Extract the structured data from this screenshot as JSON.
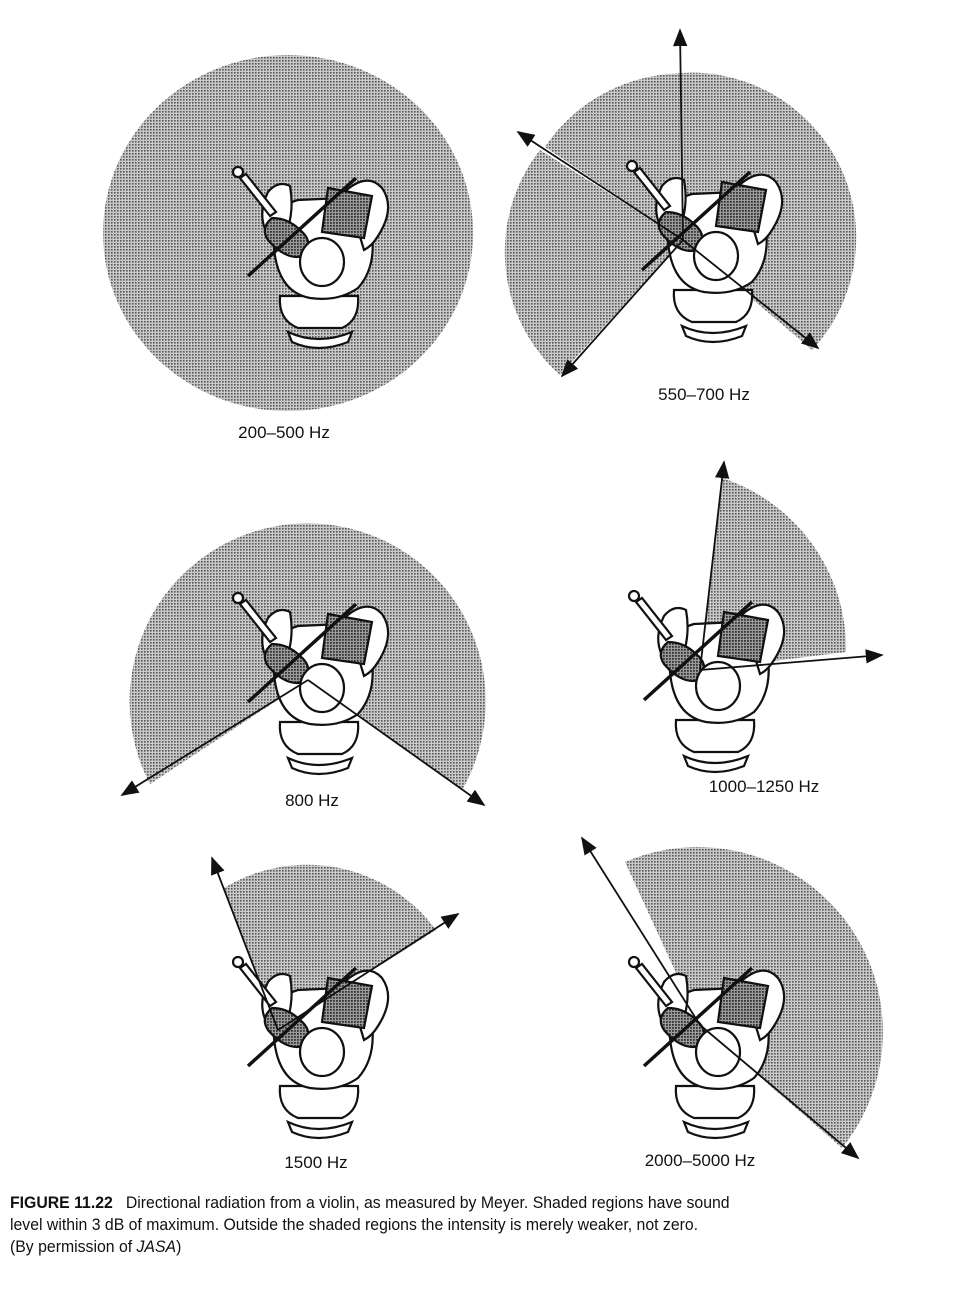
{
  "figure": {
    "caption_number": "FIGURE 11.22",
    "caption_line1": "Directional radiation from a violin, as measured by Meyer. Shaded regions have sound",
    "caption_line2": "level within 3 dB of maximum. Outside the shaded regions the intensity is merely weaker, not zero.",
    "caption_line3_prefix": "(By permission of ",
    "caption_line3_source": "JASA",
    "caption_line3_suffix": ")"
  },
  "panels": [
    {
      "id": "p1",
      "label": "200–500 Hz"
    },
    {
      "id": "p2",
      "label": "550–700 Hz"
    },
    {
      "id": "p3",
      "label": "800 Hz"
    },
    {
      "id": "p4",
      "label": "1000–1250 Hz"
    },
    {
      "id": "p5",
      "label": "1500 Hz"
    },
    {
      "id": "p6",
      "label": "2000–5000 Hz"
    }
  ],
  "colors": {
    "shade": "#9a9a9a",
    "ink": "#111111"
  }
}
